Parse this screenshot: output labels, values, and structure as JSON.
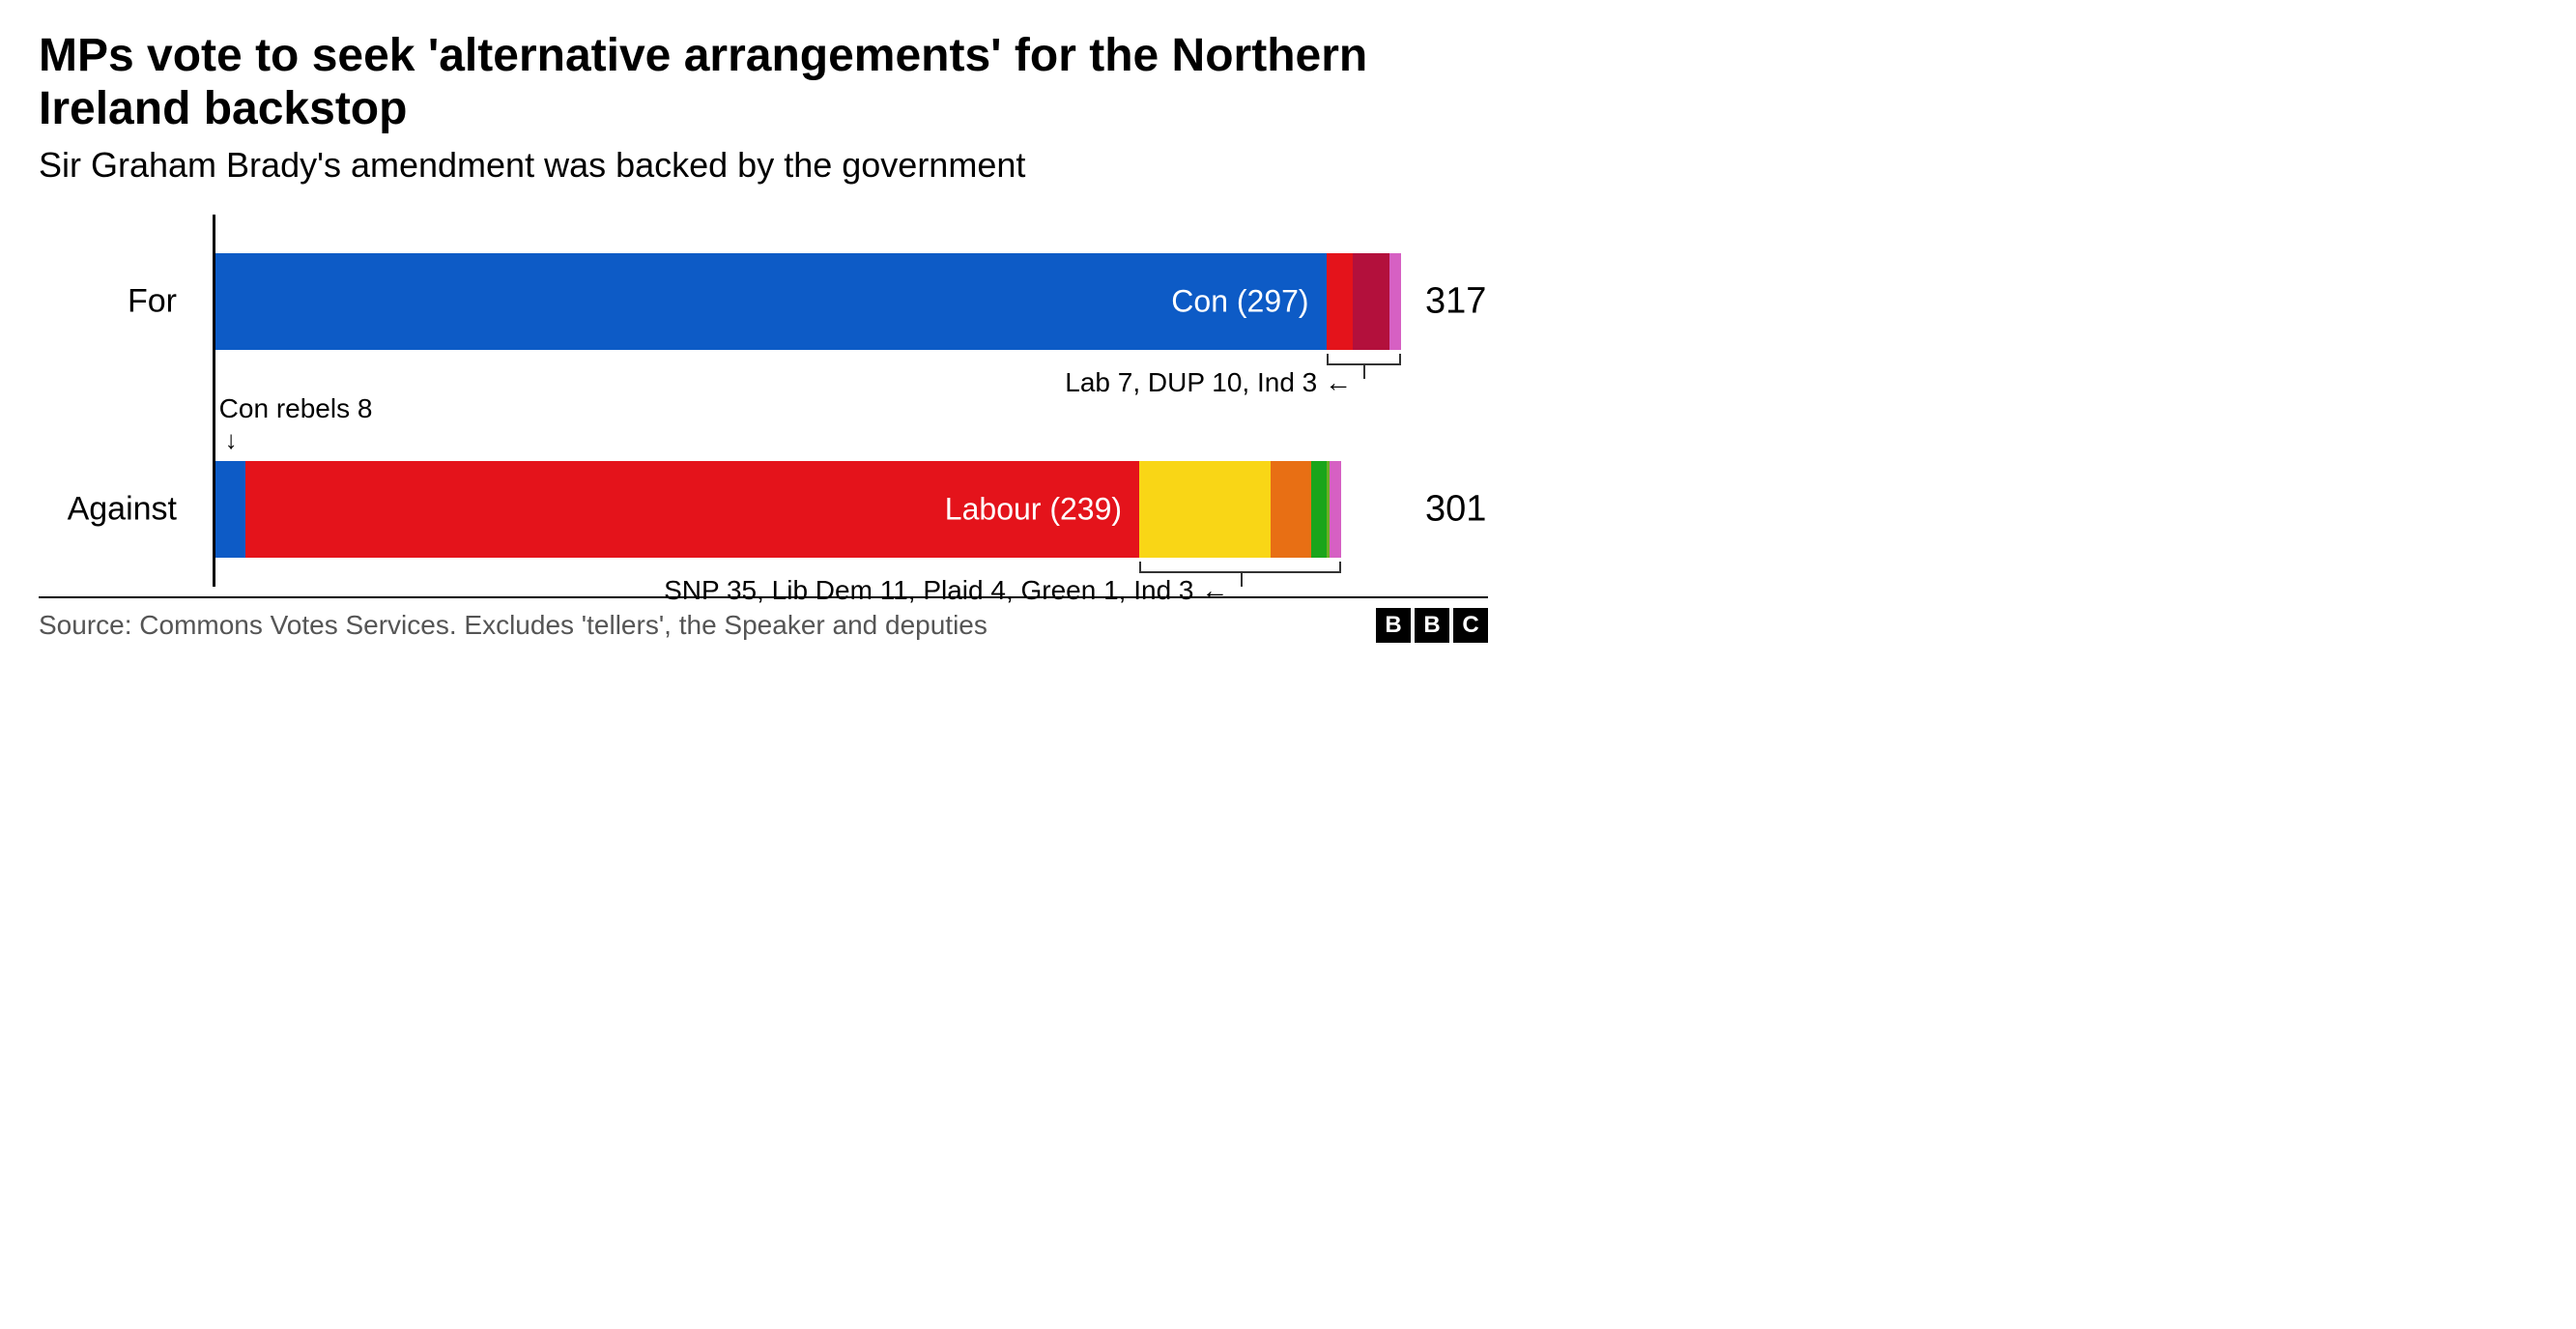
{
  "title": "MPs vote to seek 'alternative arrangements' for the Northern Ireland backstop",
  "subtitle": "Sir Graham Brady's amendment was backed by the government",
  "source": "Source: Commons Votes Services. Excludes 'tellers', the Speaker and deputies",
  "logo_letters": [
    "B",
    "B",
    "C"
  ],
  "chart": {
    "type": "stacked-bar-horizontal",
    "max_value": 317,
    "background_color": "#ffffff",
    "axis_color": "#000000",
    "label_fontsize": 34,
    "total_fontsize": 38,
    "seg_label_fontsize": 32,
    "annotation_fontsize": 28,
    "rows": [
      {
        "label": "For",
        "total": 317,
        "segments": [
          {
            "name": "Con",
            "value": 297,
            "color": "#0d5bc6",
            "show_label": true,
            "label": "Con (297)"
          },
          {
            "name": "Lab",
            "value": 7,
            "color": "#e4131b",
            "show_label": false
          },
          {
            "name": "DUP",
            "value": 10,
            "color": "#b3103c",
            "show_label": false
          },
          {
            "name": "Ind",
            "value": 3,
            "color": "#d660c3",
            "show_label": false
          }
        ],
        "callout_minor": {
          "text": "Lab 7, DUP 10, Ind 3",
          "bracket_from_seg": 1,
          "bracket_to_seg": 3
        }
      },
      {
        "label": "Against",
        "total": 301,
        "segments": [
          {
            "name": "Con rebels",
            "value": 8,
            "color": "#0d5bc6",
            "show_label": false
          },
          {
            "name": "Labour",
            "value": 239,
            "color": "#e4131b",
            "show_label": true,
            "label": "Labour (239)"
          },
          {
            "name": "SNP",
            "value": 35,
            "color": "#f9d616",
            "show_label": false
          },
          {
            "name": "Lib Dem",
            "value": 11,
            "color": "#e86f14",
            "show_label": false
          },
          {
            "name": "Plaid",
            "value": 4,
            "color": "#1aa51a",
            "show_label": false
          },
          {
            "name": "Green",
            "value": 1,
            "color": "#6ab023",
            "show_label": false
          },
          {
            "name": "Ind",
            "value": 3,
            "color": "#d660c3",
            "show_label": false
          }
        ],
        "callout_top": {
          "text": "Con rebels 8",
          "arrow": "↓",
          "seg_index": 0
        },
        "callout_minor": {
          "text": "SNP 35, Lib Dem 11, Plaid 4, Green 1, Ind 3",
          "bracket_from_seg": 2,
          "bracket_to_seg": 6
        }
      }
    ]
  }
}
